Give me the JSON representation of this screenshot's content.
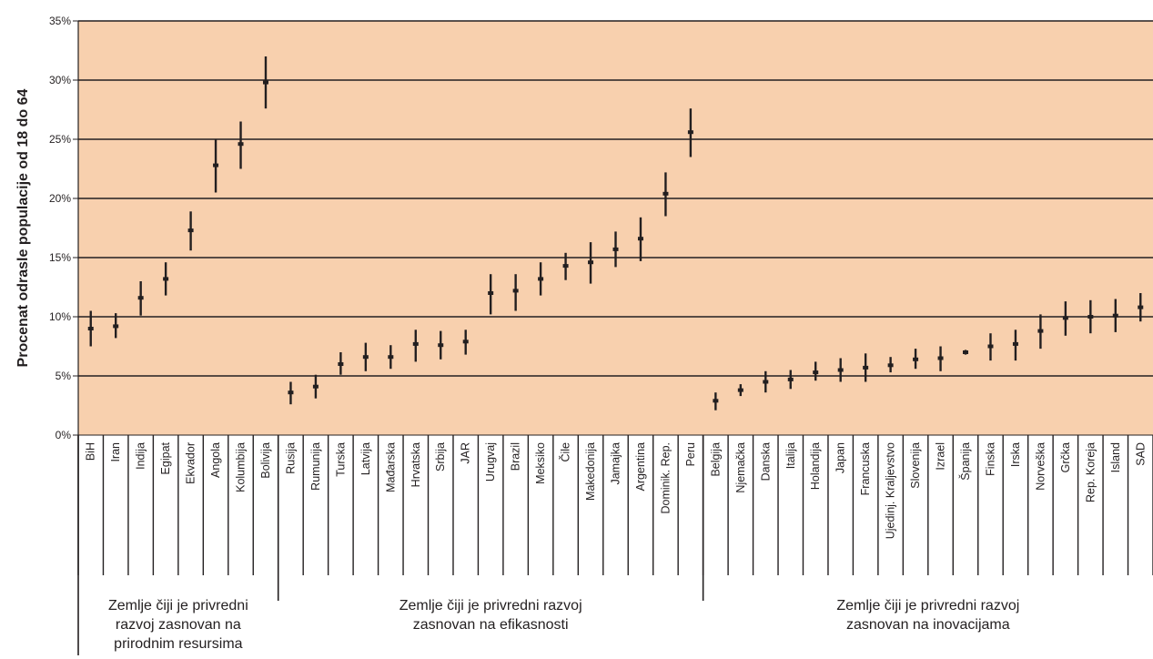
{
  "chart_data": {
    "type": "scatter",
    "ylabel": "Procenat odrasle populacije od 18 do 64",
    "ylim": [
      0,
      35
    ],
    "yticks": [
      "0%",
      "5%",
      "10%",
      "15%",
      "20%",
      "25%",
      "30%",
      "35%"
    ],
    "grid": true,
    "colors": {
      "background": "#f8d0ae",
      "gridline": "#231f20",
      "marker": "#231f20"
    },
    "categories": [
      "BiH",
      "Iran",
      "Indija",
      "Egipat",
      "Ekvador",
      "Angola",
      "Kolumbija",
      "Bolivija",
      "Rusija",
      "Rumunija",
      "Turska",
      "Latvija",
      "Mađarska",
      "Hrvatska",
      "Srbija",
      "JAR",
      "Urugvaj",
      "Brazil",
      "Meksiko",
      "Čile",
      "Makedonija",
      "Jamajka",
      "Argentina",
      "Dominik. Rep.",
      "Peru",
      "Belgija",
      "Njemačka",
      "Danska",
      "Italija",
      "Holandija",
      "Japan",
      "Francuska",
      "Ujedinj. Kraljevstvo",
      "Slovenija",
      "Izrael",
      "Španija",
      "Finska",
      "Irska",
      "Norveška",
      "Grčka",
      "Rep. Koreja",
      "Island",
      "SAD"
    ],
    "values": [
      9.0,
      9.2,
      11.6,
      13.2,
      17.3,
      22.8,
      24.6,
      29.8,
      3.6,
      4.1,
      6.0,
      6.6,
      6.6,
      7.7,
      7.6,
      7.9,
      12.0,
      12.2,
      13.2,
      14.3,
      14.6,
      15.7,
      16.6,
      20.4,
      25.6,
      2.9,
      3.8,
      4.5,
      4.7,
      5.3,
      5.5,
      5.7,
      5.9,
      6.4,
      6.5,
      7.0,
      7.5,
      7.7,
      8.8,
      9.9,
      10.0,
      10.1,
      10.8
    ],
    "low": [
      7.5,
      8.2,
      10.1,
      11.8,
      15.6,
      20.5,
      22.5,
      27.6,
      2.6,
      3.1,
      5.1,
      5.4,
      5.6,
      6.2,
      6.4,
      6.8,
      10.2,
      10.5,
      11.8,
      13.1,
      12.8,
      14.2,
      14.7,
      18.5,
      23.5,
      2.1,
      3.3,
      3.6,
      3.9,
      4.6,
      4.5,
      4.5,
      5.3,
      5.6,
      5.4,
      6.8,
      6.3,
      6.3,
      7.3,
      8.4,
      8.6,
      8.7,
      9.6
    ],
    "high": [
      10.5,
      10.3,
      13.0,
      14.6,
      18.9,
      25.0,
      26.5,
      32.0,
      4.5,
      5.1,
      7.0,
      7.8,
      7.6,
      8.9,
      8.8,
      8.9,
      13.6,
      13.6,
      14.6,
      15.4,
      16.3,
      17.2,
      18.4,
      22.2,
      27.6,
      3.6,
      4.3,
      5.4,
      5.5,
      6.2,
      6.5,
      6.9,
      6.6,
      7.3,
      7.5,
      7.2,
      8.6,
      8.9,
      10.2,
      11.3,
      11.4,
      11.5,
      12.0
    ],
    "groups": [
      {
        "label_lines": [
          "Zemlje čiji je privredni",
          "razvoj zasnovan na",
          "prirodnim resursima"
        ],
        "count": 8
      },
      {
        "label_lines": [
          "Zemlje čiji je privredni razvoj",
          "zasnovan na efikasnosti"
        ],
        "count": 17
      },
      {
        "label_lines": [
          "Zemlje čiji je privredni razvoj",
          "zasnovan na inovacijama"
        ],
        "count": 18
      }
    ]
  }
}
